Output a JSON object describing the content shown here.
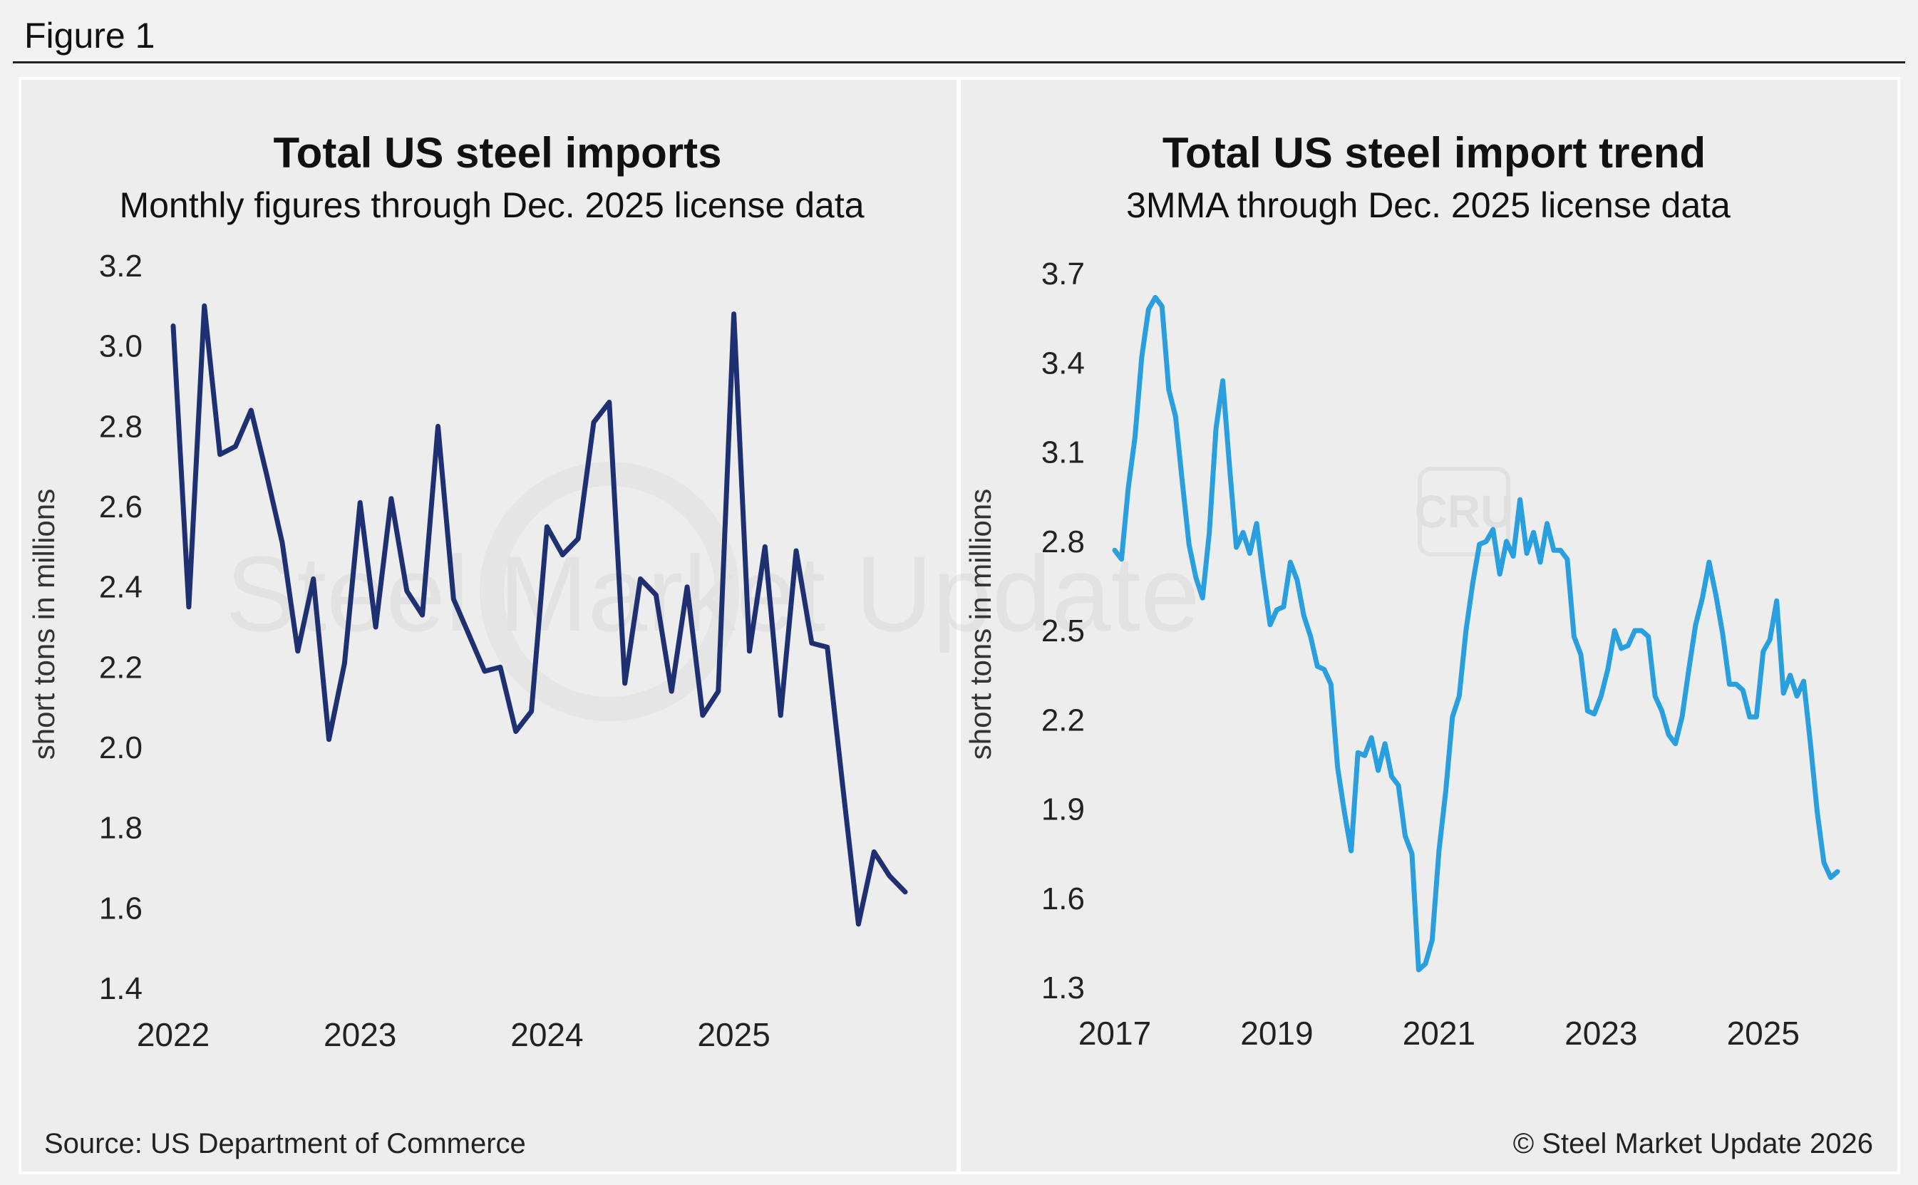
{
  "figure_label": "Figure 1",
  "source": "Source: US Department of Commerce",
  "copyright": "© Steel Market Update 2026",
  "watermark_left": "Steel Market Update",
  "watermark_right": "CRU",
  "chart_data": [
    {
      "type": "line",
      "title": "Total US steel imports",
      "subtitle": "Monthly figures through Dec. 2025 license data",
      "ylabel": "short tons in millions",
      "xlabel": "",
      "x_ticks": [
        "2022",
        "2023",
        "2024",
        "2025"
      ],
      "y_ticks": [
        "3.2",
        "3.0",
        "2.8",
        "2.6",
        "2.4",
        "2.2",
        "2.0",
        "1.8",
        "1.6",
        "1.4"
      ],
      "ylim": [
        1.4,
        3.2
      ],
      "xlim": [
        "2022-01",
        "2025-12"
      ],
      "grid": false,
      "color": "#1e2f72",
      "series": [
        {
          "x": [
            "2022-01",
            "2022-02",
            "2022-03",
            "2022-04",
            "2022-05",
            "2022-06",
            "2022-07",
            "2022-08",
            "2022-09",
            "2022-10",
            "2022-11",
            "2022-12",
            "2023-01",
            "2023-02",
            "2023-03",
            "2023-04",
            "2023-05",
            "2023-06",
            "2023-07",
            "2023-08",
            "2023-09",
            "2023-10",
            "2023-11",
            "2023-12",
            "2024-01",
            "2024-02",
            "2024-03",
            "2024-04",
            "2024-05",
            "2024-06",
            "2024-07",
            "2024-08",
            "2024-09",
            "2024-10",
            "2024-11",
            "2024-12",
            "2025-01",
            "2025-02",
            "2025-03",
            "2025-04",
            "2025-05",
            "2025-06",
            "2025-07",
            "2025-08",
            "2025-09",
            "2025-10",
            "2025-11",
            "2025-12"
          ],
          "values": [
            3.05,
            2.35,
            3.1,
            2.73,
            2.75,
            2.84,
            2.68,
            2.51,
            2.24,
            2.42,
            2.02,
            2.21,
            2.61,
            2.3,
            2.62,
            2.39,
            2.33,
            2.8,
            2.37,
            2.28,
            2.19,
            2.2,
            2.04,
            2.09,
            2.55,
            2.48,
            2.52,
            2.81,
            2.86,
            2.16,
            2.42,
            2.38,
            2.14,
            2.4,
            2.08,
            2.14,
            3.08,
            2.24,
            2.5,
            2.08,
            2.49,
            2.26,
            2.25,
            1.9,
            1.56,
            1.74,
            1.68,
            1.64
          ]
        }
      ]
    },
    {
      "type": "line",
      "title": "Total US steel import trend",
      "subtitle": "3MMA through Dec. 2025 license data",
      "ylabel": "short tons in millions",
      "xlabel": "",
      "x_ticks": [
        "2017",
        "2019",
        "2021",
        "2023",
        "2025"
      ],
      "y_ticks": [
        "3.7",
        "3.4",
        "3.1",
        "2.8",
        "2.5",
        "2.2",
        "1.9",
        "1.6",
        "1.3"
      ],
      "ylim": [
        1.3,
        3.7
      ],
      "xlim": [
        "2017-01",
        "2025-12"
      ],
      "grid": false,
      "color": "#2a9fe0",
      "series": [
        {
          "x": [
            "2017-01",
            "2017-02",
            "2017-03",
            "2017-04",
            "2017-05",
            "2017-06",
            "2017-07",
            "2017-08",
            "2017-09",
            "2017-10",
            "2017-11",
            "2017-12",
            "2018-01",
            "2018-02",
            "2018-03",
            "2018-04",
            "2018-05",
            "2018-06",
            "2018-07",
            "2018-08",
            "2018-09",
            "2018-10",
            "2018-11",
            "2018-12",
            "2019-01",
            "2019-02",
            "2019-03",
            "2019-04",
            "2019-05",
            "2019-06",
            "2019-07",
            "2019-08",
            "2019-09",
            "2019-10",
            "2019-11",
            "2019-12",
            "2020-01",
            "2020-02",
            "2020-03",
            "2020-04",
            "2020-05",
            "2020-06",
            "2020-07",
            "2020-08",
            "2020-09",
            "2020-10",
            "2020-11",
            "2020-12",
            "2021-01",
            "2021-02",
            "2021-03",
            "2021-04",
            "2021-05",
            "2021-06",
            "2021-07",
            "2021-08",
            "2021-09",
            "2021-10",
            "2021-11",
            "2021-12",
            "2022-01",
            "2022-02",
            "2022-03",
            "2022-04",
            "2022-05",
            "2022-06",
            "2022-07",
            "2022-08",
            "2022-09",
            "2022-10",
            "2022-11",
            "2022-12",
            "2023-01",
            "2023-02",
            "2023-03",
            "2023-04",
            "2023-05",
            "2023-06",
            "2023-07",
            "2023-08",
            "2023-09",
            "2023-10",
            "2023-11",
            "2023-12",
            "2024-01",
            "2024-02",
            "2024-03",
            "2024-04",
            "2024-05",
            "2024-06",
            "2024-07",
            "2024-08",
            "2024-09",
            "2024-10",
            "2024-11",
            "2024-12",
            "2025-01",
            "2025-02",
            "2025-03",
            "2025-04",
            "2025-05",
            "2025-06",
            "2025-07",
            "2025-08",
            "2025-09",
            "2025-10",
            "2025-11",
            "2025-12"
          ],
          "values": [
            2.77,
            2.74,
            2.98,
            3.15,
            3.42,
            3.58,
            3.62,
            3.59,
            3.31,
            3.22,
            3.0,
            2.79,
            2.68,
            2.61,
            2.83,
            3.18,
            3.34,
            3.05,
            2.78,
            2.83,
            2.76,
            2.86,
            2.68,
            2.52,
            2.57,
            2.58,
            2.73,
            2.67,
            2.55,
            2.48,
            2.38,
            2.37,
            2.32,
            2.04,
            1.89,
            1.76,
            2.09,
            2.08,
            2.14,
            2.03,
            2.12,
            2.01,
            1.98,
            1.81,
            1.75,
            1.36,
            1.38,
            1.46,
            1.76,
            1.96,
            2.21,
            2.28,
            2.5,
            2.66,
            2.79,
            2.8,
            2.84,
            2.69,
            2.8,
            2.75,
            2.94,
            2.76,
            2.83,
            2.73,
            2.86,
            2.77,
            2.77,
            2.74,
            2.48,
            2.42,
            2.23,
            2.22,
            2.28,
            2.37,
            2.5,
            2.44,
            2.45,
            2.5,
            2.5,
            2.48,
            2.28,
            2.23,
            2.15,
            2.12,
            2.21,
            2.37,
            2.52,
            2.61,
            2.73,
            2.62,
            2.49,
            2.32,
            2.32,
            2.3,
            2.21,
            2.21,
            2.43,
            2.47,
            2.6,
            2.29,
            2.35,
            2.28,
            2.33,
            2.12,
            1.89,
            1.72,
            1.67,
            1.69
          ]
        }
      ]
    }
  ]
}
